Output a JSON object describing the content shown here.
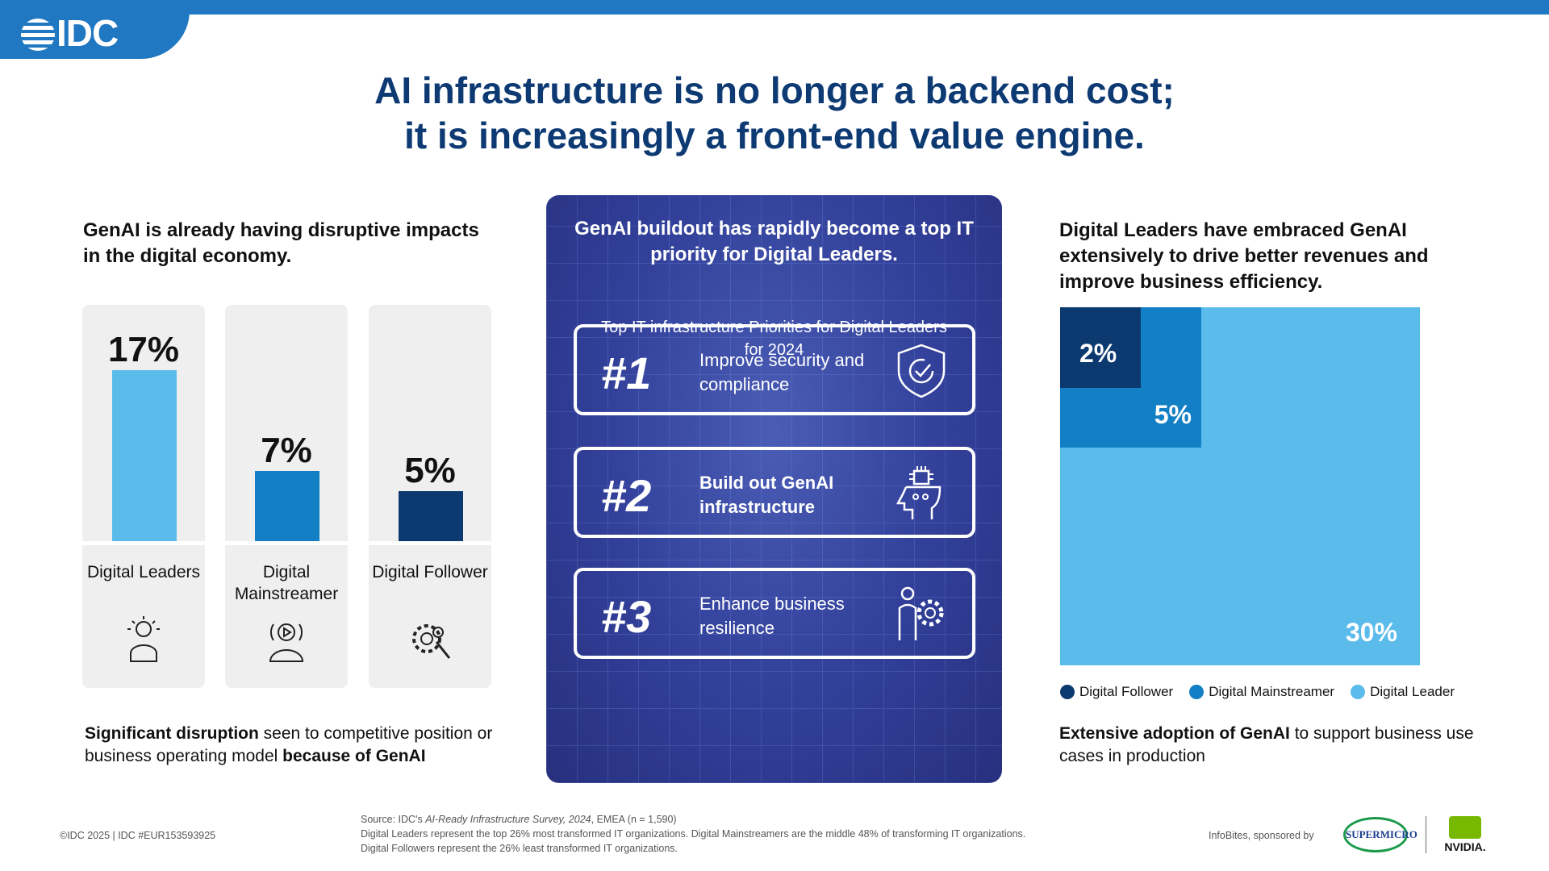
{
  "brand": {
    "logo": "IDC",
    "accent": "#1f78c1",
    "title_color": "#0d3a73"
  },
  "title": {
    "line1": "AI infrastructure is no longer a backend cost;",
    "line2": "it is increasingly a front-end value engine."
  },
  "left": {
    "heading": "GenAI is already having disruptive impacts in the digital economy.",
    "bars": [
      {
        "label": "Digital Leaders",
        "value": 17,
        "value_text": "17%",
        "color": "#5bbcec",
        "icon": "lightbulb-person-icon"
      },
      {
        "label": "Digital Mainstreamer",
        "value": 7,
        "value_text": "7%",
        "color": "#137fc4",
        "icon": "broadcast-person-icon"
      },
      {
        "label": "Digital Follower",
        "value": 5,
        "value_text": "5%",
        "color": "#0c3a70",
        "icon": "gear-person-icon"
      }
    ],
    "note_bold1": "Significant disruption",
    "note_mid": " seen to competitive position or business operating model ",
    "note_bold2": "because of GenAI"
  },
  "center": {
    "heading": "GenAI buildout has rapidly become a top IT priority for Digital Leaders.",
    "subheading": "Top IT infrastructure Priorities for Digital Leaders for 2024",
    "priorities": [
      {
        "rank": "#1",
        "text": "Improve security and compliance",
        "icon": "shield-check-icon"
      },
      {
        "rank": "#2",
        "text": "Build out GenAI infrastructure",
        "icon": "ai-head-chip-icon"
      },
      {
        "rank": "#3",
        "text": "Enhance business resilience",
        "icon": "person-gear-icon"
      }
    ]
  },
  "right": {
    "heading": "Digital Leaders have embraced GenAI extensively to drive better revenues and improve business efficiency.",
    "treemap": [
      {
        "name": "Digital Follower",
        "value": 2,
        "text": "2%",
        "color": "#0c3a70"
      },
      {
        "name": "Digital Mainstreamer",
        "value": 5,
        "text": "5%",
        "color": "#137fc4"
      },
      {
        "name": "Digital Leader",
        "value": 30,
        "text": "30%",
        "color": "#5bbcec"
      }
    ],
    "note_bold": "Extensive adoption of GenAI",
    "note_rest": " to support business use cases in production"
  },
  "footer": {
    "copyright": "©IDC 2025  |  IDC #EUR153593925",
    "source_prefix": "Source: IDC's ",
    "source_italic": "AI-Ready Infrastructure Survey, 2024",
    "source_suffix": ", EMEA (n = 1,590)",
    "line2": "Digital Leaders represent the top 26% most transformed IT organizations. Digital Mainstreamers are the middle 48% of transforming IT organizations.",
    "line3": "Digital Followers represent the 26% least transformed IT organizations.",
    "sponsor_label": "InfoBites, sponsored by",
    "sponsor1": "SUPERMICRO",
    "sponsor2": "NVIDIA."
  }
}
